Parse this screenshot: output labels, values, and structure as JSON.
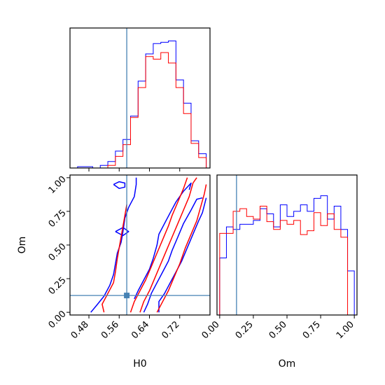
{
  "chart_data": {
    "type": "corner",
    "parameters": [
      "H0",
      "Om"
    ],
    "truth": {
      "H0": 0.58,
      "Om": 0.125
    },
    "colors": {
      "series_a": "#0000ff",
      "series_b": "#ff0000",
      "truth": "#4682b4"
    },
    "panels": [
      {
        "id": "hist-H0",
        "type": "histogram",
        "parameter": "H0",
        "xlim": [
          0.43,
          0.8
        ],
        "ylim": [
          0,
          1.08
        ],
        "xticks": [
          0.48,
          0.56,
          0.64,
          0.72
        ],
        "bins": [
          0.43,
          0.45,
          0.47,
          0.49,
          0.51,
          0.53,
          0.55,
          0.57,
          0.59,
          0.61,
          0.63,
          0.65,
          0.67,
          0.69,
          0.71,
          0.73,
          0.75,
          0.77,
          0.79
        ],
        "series": [
          {
            "color_key": "series_a",
            "values": [
              0,
              0.01,
              0.01,
              0.0,
              0.02,
              0.05,
              0.13,
              0.22,
              0.4,
              0.67,
              0.88,
              0.96,
              0.97,
              0.98,
              0.68,
              0.5,
              0.21,
              0.11
            ]
          },
          {
            "color_key": "series_b",
            "values": [
              0,
              0,
              0,
              0,
              0,
              0.02,
              0.09,
              0.18,
              0.39,
              0.62,
              0.86,
              0.84,
              0.89,
              0.81,
              0.62,
              0.42,
              0.19,
              0.08
            ]
          }
        ]
      },
      {
        "id": "contour-H0-Om",
        "type": "contour",
        "x": "H0",
        "y": "Om",
        "xlim": [
          0.43,
          0.8
        ],
        "ylim": [
          -0.02,
          1.02
        ],
        "xticks": [
          0.48,
          0.56,
          0.64,
          0.72
        ],
        "yticks": [
          0.0,
          0.25,
          0.5,
          0.75,
          1.0
        ],
        "xlabel": "H0",
        "ylabel": "Om",
        "contours": [
          {
            "color_key": "series_a",
            "points": [
              [
                0.485,
                0.0
              ],
              [
                0.5,
                0.05
              ],
              [
                0.52,
                0.12
              ],
              [
                0.535,
                0.2
              ],
              [
                0.545,
                0.28
              ],
              [
                0.55,
                0.36
              ],
              [
                0.555,
                0.44
              ],
              [
                0.565,
                0.52
              ],
              [
                0.57,
                0.6
              ],
              [
                0.575,
                0.7
              ],
              [
                0.585,
                0.78
              ],
              [
                0.6,
                0.86
              ],
              [
                0.605,
                0.95
              ],
              [
                0.605,
                1.0
              ]
            ]
          },
          {
            "color_key": "series_a",
            "points": [
              [
                0.545,
                0.95
              ],
              [
                0.56,
                0.97
              ],
              [
                0.575,
                0.96
              ],
              [
                0.575,
                0.93
              ],
              [
                0.56,
                0.92
              ],
              [
                0.545,
                0.95
              ]
            ]
          },
          {
            "color_key": "series_a",
            "points": [
              [
                0.55,
                0.6
              ],
              [
                0.57,
                0.63
              ],
              [
                0.585,
                0.6
              ],
              [
                0.57,
                0.57
              ],
              [
                0.55,
                0.6
              ]
            ]
          },
          {
            "color_key": "series_a",
            "points": [
              [
                0.6,
                0.1
              ],
              [
                0.61,
                0.16
              ],
              [
                0.625,
                0.24
              ],
              [
                0.64,
                0.32
              ],
              [
                0.65,
                0.4
              ],
              [
                0.66,
                0.5
              ],
              [
                0.665,
                0.58
              ],
              [
                0.68,
                0.66
              ],
              [
                0.695,
                0.74
              ],
              [
                0.71,
                0.82
              ],
              [
                0.73,
                0.9
              ],
              [
                0.75,
                0.96
              ],
              [
                0.745,
                0.91
              ]
            ]
          },
          {
            "color_key": "series_a",
            "points": [
              [
                0.625,
                0.0
              ],
              [
                0.635,
                0.06
              ],
              [
                0.645,
                0.14
              ],
              [
                0.66,
                0.22
              ],
              [
                0.675,
                0.3
              ],
              [
                0.69,
                0.38
              ],
              [
                0.7,
                0.46
              ],
              [
                0.715,
                0.56
              ],
              [
                0.73,
                0.66
              ],
              [
                0.75,
                0.76
              ],
              [
                0.765,
                0.84
              ],
              [
                0.78,
                0.85
              ]
            ]
          },
          {
            "color_key": "series_a",
            "points": [
              [
                0.665,
                0.0
              ],
              [
                0.665,
                0.08
              ],
              [
                0.68,
                0.14
              ],
              [
                0.695,
                0.22
              ],
              [
                0.71,
                0.3
              ],
              [
                0.725,
                0.38
              ],
              [
                0.74,
                0.48
              ],
              [
                0.755,
                0.58
              ],
              [
                0.77,
                0.68
              ],
              [
                0.78,
                0.74
              ],
              [
                0.79,
                0.85
              ]
            ]
          },
          {
            "color_key": "series_b",
            "points": [
              [
                0.52,
                0.0
              ],
              [
                0.515,
                0.06
              ],
              [
                0.53,
                0.14
              ],
              [
                0.545,
                0.22
              ],
              [
                0.55,
                0.3
              ],
              [
                0.555,
                0.4
              ],
              [
                0.56,
                0.48
              ],
              [
                0.565,
                0.56
              ],
              [
                0.57,
                0.64
              ],
              [
                0.575,
                0.72
              ],
              [
                0.58,
                0.8
              ]
            ]
          },
          {
            "color_key": "series_b",
            "points": [
              [
                0.59,
                0.0
              ],
              [
                0.6,
                0.08
              ],
              [
                0.615,
                0.16
              ],
              [
                0.63,
                0.24
              ],
              [
                0.645,
                0.34
              ],
              [
                0.66,
                0.44
              ],
              [
                0.675,
                0.54
              ],
              [
                0.69,
                0.64
              ],
              [
                0.7,
                0.72
              ],
              [
                0.715,
                0.82
              ],
              [
                0.73,
                0.92
              ],
              [
                0.74,
                1.0
              ]
            ]
          },
          {
            "color_key": "series_b",
            "points": [
              [
                0.615,
                0.0
              ],
              [
                0.625,
                0.08
              ],
              [
                0.64,
                0.16
              ],
              [
                0.655,
                0.26
              ],
              [
                0.67,
                0.36
              ],
              [
                0.685,
                0.46
              ],
              [
                0.7,
                0.56
              ],
              [
                0.715,
                0.66
              ],
              [
                0.73,
                0.76
              ],
              [
                0.745,
                0.86
              ],
              [
                0.755,
                0.96
              ],
              [
                0.765,
                1.0
              ]
            ]
          },
          {
            "color_key": "series_b",
            "points": [
              [
                0.66,
                0.0
              ],
              [
                0.675,
                0.08
              ],
              [
                0.69,
                0.16
              ],
              [
                0.705,
                0.26
              ],
              [
                0.72,
                0.36
              ],
              [
                0.735,
                0.48
              ],
              [
                0.75,
                0.58
              ],
              [
                0.765,
                0.68
              ],
              [
                0.775,
                0.78
              ],
              [
                0.785,
                0.88
              ],
              [
                0.79,
                0.95
              ]
            ]
          }
        ]
      },
      {
        "id": "hist-Om",
        "type": "histogram",
        "parameter": "Om",
        "xlim": [
          -0.02,
          1.02
        ],
        "ylim": [
          0,
          1.08
        ],
        "xticks": [
          0.0,
          0.25,
          0.5,
          0.75,
          1.0
        ],
        "xlabel": "Om",
        "bins": [
          0.0,
          0.05,
          0.1,
          0.15,
          0.2,
          0.25,
          0.3,
          0.35,
          0.4,
          0.45,
          0.5,
          0.55,
          0.6,
          0.65,
          0.7,
          0.75,
          0.8,
          0.85,
          0.9,
          0.95,
          1.0
        ],
        "series": [
          {
            "color_key": "series_a",
            "values": [
              0.44,
              0.68,
              0.66,
              0.7,
              0.7,
              0.73,
              0.82,
              0.78,
              0.68,
              0.85,
              0.76,
              0.8,
              0.85,
              0.8,
              0.9,
              0.92,
              0.74,
              0.84,
              0.66,
              0.34
            ]
          },
          {
            "color_key": "series_b",
            "values": [
              0.63,
              0.63,
              0.8,
              0.82,
              0.76,
              0.74,
              0.84,
              0.72,
              0.66,
              0.73,
              0.7,
              0.73,
              0.62,
              0.65,
              0.79,
              0.69,
              0.78,
              0.66,
              0.6,
              0.0
            ]
          }
        ]
      }
    ]
  }
}
